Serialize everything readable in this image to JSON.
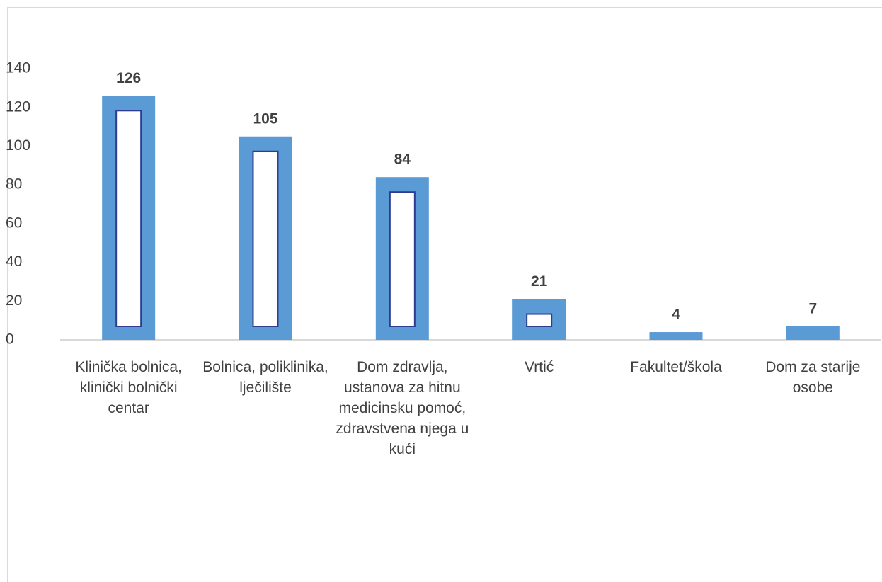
{
  "chart_data": {
    "type": "bar",
    "categories": [
      "Klinička bolnica, klinički bolnički centar",
      "Bolnica, poliklinika, lječilište",
      "Dom zdravlja, ustanova za hitnu medicinsku pomoć, zdravstvena njega u kući",
      "Vrtić",
      "Fakultet/škola",
      "Dom za starije osobe"
    ],
    "values": [
      126,
      105,
      84,
      21,
      4,
      7
    ],
    "color": "#5b9bd5",
    "ylim": [
      0,
      140
    ],
    "yticks": [
      0,
      20,
      40,
      60,
      80,
      100,
      120,
      140
    ],
    "grid": false
  }
}
